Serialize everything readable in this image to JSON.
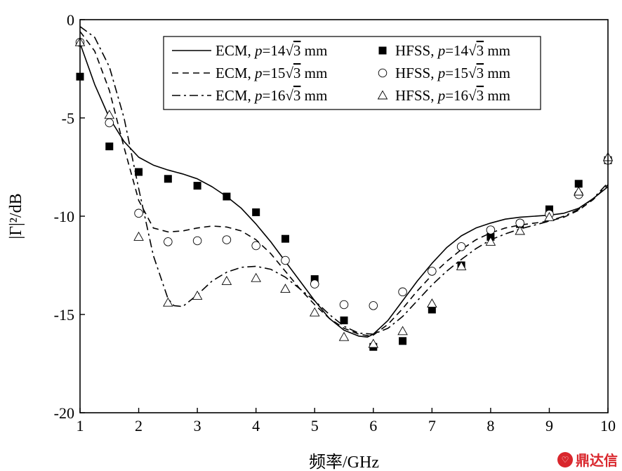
{
  "chart_data": {
    "type": "line",
    "xlabel": "频率/GHz",
    "ylabel": "|Γ|²/dB",
    "xlim": [
      1,
      10
    ],
    "ylim": [
      -20,
      0
    ],
    "xticks": [
      1,
      2,
      3,
      4,
      5,
      6,
      7,
      8,
      9,
      10
    ],
    "yticks": [
      0,
      -5,
      -10,
      -15,
      -20
    ],
    "grid": false,
    "legend_position": "top-right",
    "series": [
      {
        "name": "ECM, p=14√3 mm",
        "kind": "line",
        "style": "solid",
        "x": [
          1.0,
          1.25,
          1.5,
          1.75,
          2.0,
          2.25,
          2.5,
          2.75,
          3.0,
          3.25,
          3.5,
          3.75,
          4.0,
          4.25,
          4.5,
          4.75,
          5.0,
          5.25,
          5.5,
          5.75,
          5.9,
          6.0,
          6.25,
          6.5,
          6.75,
          7.0,
          7.25,
          7.5,
          7.75,
          8.0,
          8.25,
          8.5,
          8.75,
          9.0,
          9.25,
          9.5,
          9.75,
          10.0
        ],
        "y": [
          -1.2,
          -3.3,
          -5.0,
          -6.2,
          -7.0,
          -7.4,
          -7.65,
          -7.85,
          -8.1,
          -8.5,
          -9.0,
          -9.6,
          -10.4,
          -11.3,
          -12.3,
          -13.3,
          -14.3,
          -15.2,
          -15.8,
          -16.1,
          -16.15,
          -16.0,
          -15.3,
          -14.3,
          -13.3,
          -12.4,
          -11.6,
          -11.0,
          -10.6,
          -10.35,
          -10.15,
          -10.05,
          -10.0,
          -9.95,
          -9.85,
          -9.6,
          -9.1,
          -8.5
        ]
      },
      {
        "name": "ECM, p=15√3 mm",
        "kind": "line",
        "style": "dashed",
        "x": [
          1.0,
          1.25,
          1.5,
          1.75,
          2.0,
          2.25,
          2.5,
          2.75,
          3.0,
          3.25,
          3.5,
          3.75,
          4.0,
          4.25,
          4.5,
          4.75,
          5.0,
          5.25,
          5.5,
          5.75,
          5.95,
          6.0,
          6.25,
          6.5,
          6.75,
          7.0,
          7.25,
          7.5,
          7.75,
          8.0,
          8.25,
          8.5,
          8.75,
          9.0,
          9.25,
          9.5,
          9.75,
          10.0
        ],
        "y": [
          -0.6,
          -1.6,
          -3.6,
          -6.5,
          -9.2,
          -10.6,
          -10.8,
          -10.75,
          -10.6,
          -10.5,
          -10.55,
          -10.75,
          -11.2,
          -11.9,
          -12.8,
          -13.7,
          -14.5,
          -15.2,
          -15.7,
          -16.0,
          -16.1,
          -16.05,
          -15.5,
          -14.7,
          -13.8,
          -13.0,
          -12.3,
          -11.7,
          -11.2,
          -10.85,
          -10.6,
          -10.45,
          -10.35,
          -10.25,
          -10.05,
          -9.7,
          -9.15,
          -8.4
        ]
      },
      {
        "name": "ECM, p=16√3 mm",
        "kind": "line",
        "style": "dashdot",
        "x": [
          1.0,
          1.25,
          1.5,
          1.75,
          2.0,
          2.25,
          2.5,
          2.6,
          2.75,
          3.0,
          3.25,
          3.5,
          3.75,
          4.0,
          4.25,
          4.5,
          4.75,
          5.0,
          5.25,
          5.5,
          5.75,
          6.0,
          6.25,
          6.5,
          6.75,
          7.0,
          7.25,
          7.5,
          7.75,
          8.0,
          8.25,
          8.5,
          8.75,
          9.0,
          9.25,
          9.5,
          9.75,
          10.0
        ],
        "y": [
          -0.35,
          -0.9,
          -2.4,
          -5.0,
          -8.6,
          -12.0,
          -14.2,
          -14.55,
          -14.6,
          -14.0,
          -13.3,
          -12.85,
          -12.6,
          -12.55,
          -12.7,
          -13.1,
          -13.7,
          -14.3,
          -15.0,
          -15.6,
          -15.95,
          -16.0,
          -15.7,
          -15.1,
          -14.3,
          -13.5,
          -12.8,
          -12.2,
          -11.65,
          -11.2,
          -10.9,
          -10.65,
          -10.45,
          -10.25,
          -10.0,
          -9.65,
          -9.1,
          -8.3
        ]
      },
      {
        "name": "HFSS, p=14√3 mm",
        "kind": "marker",
        "marker": "filled-square",
        "x": [
          1.0,
          1.5,
          2.0,
          2.5,
          3.0,
          3.5,
          4.0,
          4.5,
          5.0,
          5.5,
          6.0,
          6.5,
          7.0,
          7.5,
          8.0,
          8.5,
          9.0,
          9.5,
          10.0
        ],
        "y": [
          -2.9,
          -6.45,
          -7.75,
          -8.1,
          -8.45,
          -9.0,
          -9.8,
          -11.15,
          -13.2,
          -15.3,
          -16.65,
          -16.35,
          -14.75,
          -12.5,
          -11.05,
          -10.4,
          -9.65,
          -8.35,
          -7.15
        ]
      },
      {
        "name": "HFSS, p=15√3 mm",
        "kind": "marker",
        "marker": "open-circle",
        "x": [
          1.0,
          1.5,
          2.0,
          2.5,
          3.0,
          3.5,
          4.0,
          4.5,
          5.0,
          5.5,
          6.0,
          6.5,
          7.0,
          7.5,
          8.0,
          8.5,
          9.0,
          9.5,
          10.0
        ],
        "y": [
          -1.15,
          -5.25,
          -9.85,
          -11.3,
          -11.25,
          -11.2,
          -11.5,
          -12.25,
          -13.45,
          -14.5,
          -14.55,
          -13.85,
          -12.8,
          -11.55,
          -10.7,
          -10.35,
          -9.9,
          -8.9,
          -7.15
        ]
      },
      {
        "name": "HFSS, p=16√3 mm",
        "kind": "marker",
        "marker": "open-triangle",
        "x": [
          1.0,
          1.5,
          2.0,
          2.5,
          3.0,
          3.5,
          4.0,
          4.5,
          5.0,
          5.5,
          6.0,
          6.5,
          7.0,
          7.5,
          8.0,
          8.5,
          9.0,
          9.5,
          10.0
        ],
        "y": [
          -1.15,
          -4.85,
          -11.05,
          -14.4,
          -14.05,
          -13.3,
          -13.15,
          -13.7,
          -14.9,
          -16.15,
          -16.5,
          -15.85,
          -14.45,
          -12.55,
          -11.3,
          -10.75,
          -10.05,
          -8.75,
          -7.0
        ]
      }
    ],
    "legend": [
      {
        "series": 0,
        "prefix": "ECM, ",
        "var": "p",
        "eq": "=14",
        "sqrt": "3",
        "unit": " mm"
      },
      {
        "series": 3,
        "prefix": "HFSS, ",
        "var": "p",
        "eq": "=14",
        "sqrt": "3",
        "unit": " mm"
      },
      {
        "series": 1,
        "prefix": "ECM, ",
        "var": "p",
        "eq": "=15",
        "sqrt": "3",
        "unit": " mm"
      },
      {
        "series": 4,
        "prefix": "HFSS, ",
        "var": "p",
        "eq": "=15",
        "sqrt": "3",
        "unit": " mm"
      },
      {
        "series": 2,
        "prefix": "ECM, ",
        "var": "p",
        "eq": "=16",
        "sqrt": "3",
        "unit": " mm"
      },
      {
        "series": 5,
        "prefix": "HFSS, ",
        "var": "p",
        "eq": "=16",
        "sqrt": "3",
        "unit": " mm"
      }
    ]
  },
  "watermark": {
    "text": "鼎达信",
    "icon": "dingdaxin-logo-icon"
  }
}
